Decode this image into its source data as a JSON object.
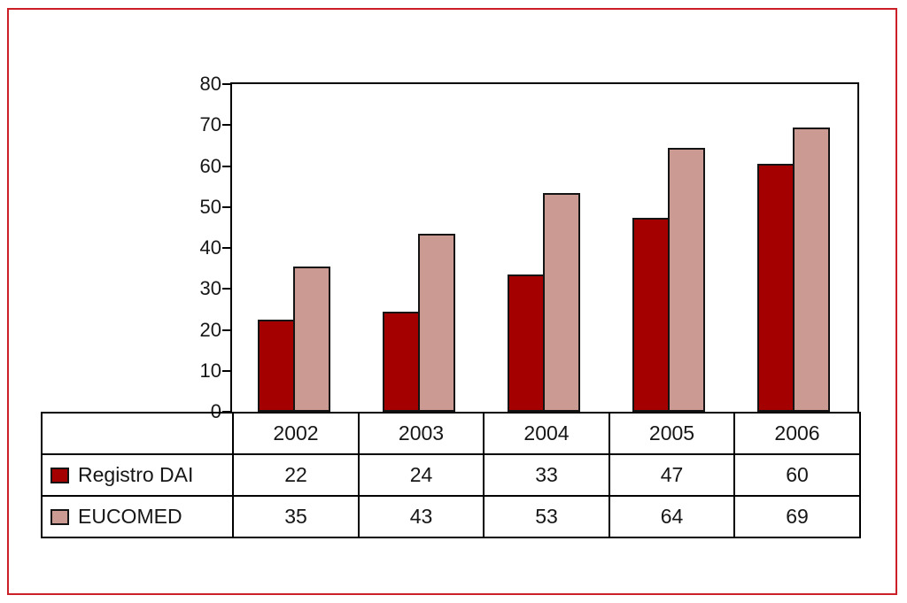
{
  "frame": {
    "border_color": "#cb2027",
    "background": "#ffffff"
  },
  "chart_data": {
    "type": "bar",
    "title": "",
    "xlabel": "",
    "ylabel": "",
    "categories": [
      "2002",
      "2003",
      "2004",
      "2005",
      "2006"
    ],
    "series": [
      {
        "name": "Registro DAI",
        "color": "#a50000",
        "values": [
          22,
          24,
          33,
          47,
          60
        ]
      },
      {
        "name": "EUCOMED",
        "color": "#cb9a92",
        "values": [
          35,
          43,
          53,
          64,
          69
        ]
      }
    ],
    "ylim": [
      0,
      80
    ],
    "yticks": [
      0,
      10,
      20,
      30,
      40,
      50,
      60,
      70,
      80
    ],
    "grid": false,
    "legend_position": "table-below-left-column",
    "bar_border_color": "#141414",
    "axis_color": "#000000"
  }
}
